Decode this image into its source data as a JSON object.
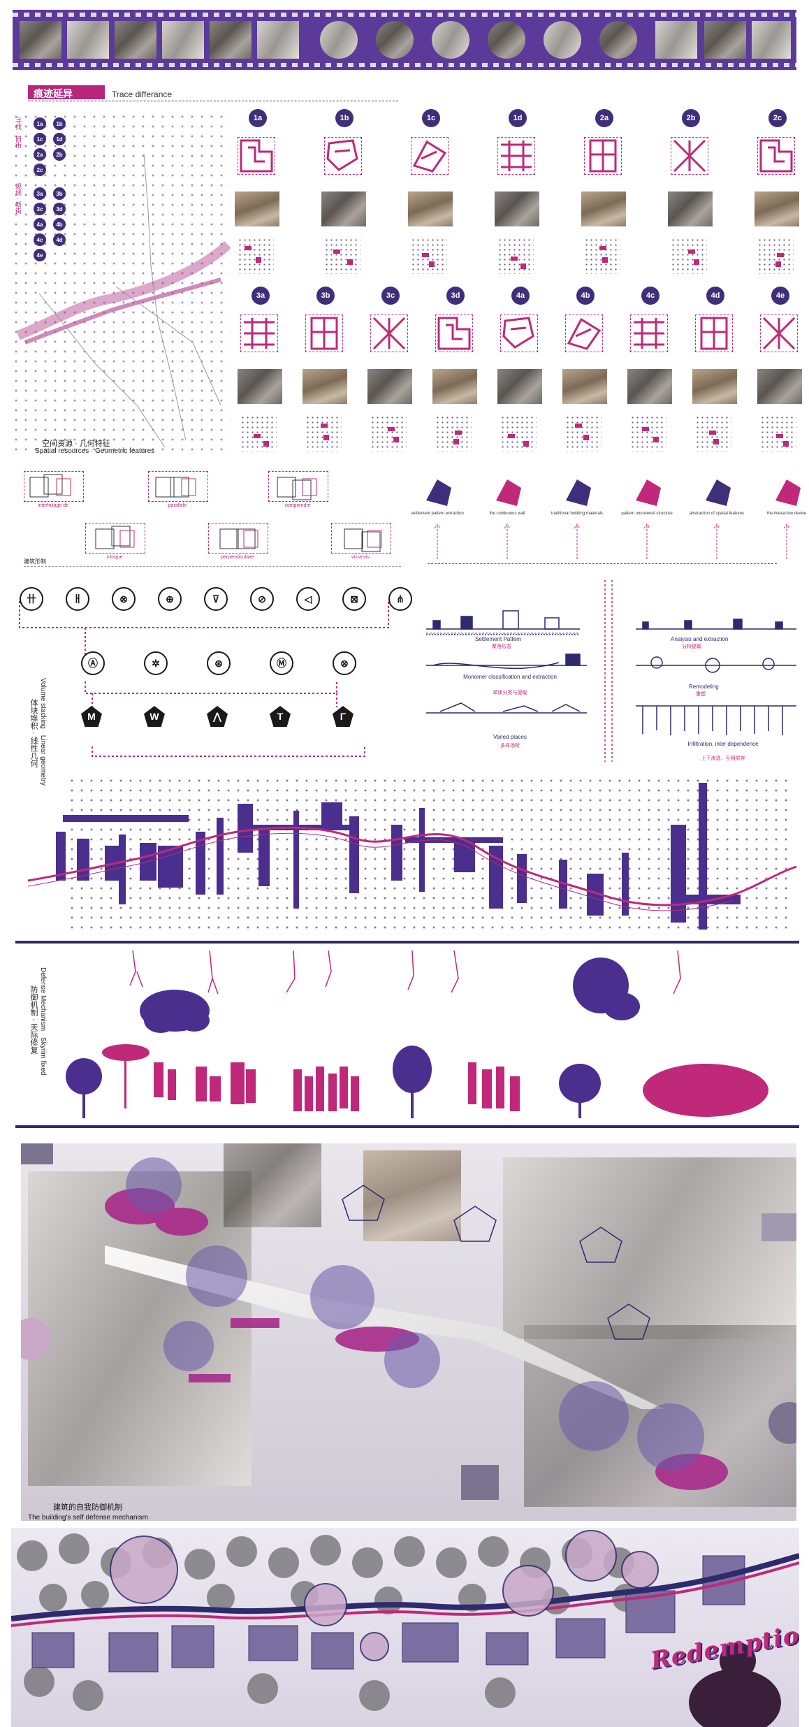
{
  "header": {
    "title_cn": "痕迹延异",
    "title_en": "Trace differance"
  },
  "legend": {
    "group1_label": "寻找 · 旧街",
    "group2_label": "规线 · 新街",
    "group1_badges": [
      "1a",
      "1b",
      "1c",
      "1d",
      "2a",
      "2b",
      "2c"
    ],
    "group2_badges": [
      "3a",
      "3b",
      "3c",
      "3d",
      "4a",
      "4b",
      "4c",
      "4d",
      "4e"
    ]
  },
  "map": {
    "caption_cn": "空间资源 · 几何特征",
    "caption_en": "Spatial resources · Geometric features"
  },
  "sites_row1": [
    "1a",
    "1b",
    "1c",
    "1d",
    "2a",
    "2b",
    "2c"
  ],
  "sites_row2": [
    "3a",
    "3b",
    "3c",
    "3d",
    "4a",
    "4b",
    "4c",
    "4d",
    "4e"
  ],
  "relations": {
    "items": [
      {
        "label": "interfoliage de"
      },
      {
        "label": "parallele"
      },
      {
        "label": "comprendre"
      },
      {
        "label": "intrique"
      },
      {
        "label": "perpendiculaire"
      },
      {
        "label": "vis-à-vis"
      }
    ],
    "section_label": "建筑形制"
  },
  "process": {
    "steps": [
      "settlement pattern extraction",
      "the continuous wall",
      "traditional building materials",
      "pattern uncovered structure",
      "abstraction of spatial features",
      "the interactive device"
    ]
  },
  "glyphs": {
    "row1": [
      "卄",
      "ㅐ",
      "⊗",
      "⊕",
      "⊽",
      "⊘",
      "◁",
      "⊠",
      "⋔"
    ],
    "row2": [
      "Ⓐ",
      "✲",
      "⊛",
      "Ⓜ",
      "⊗"
    ],
    "row3": [
      "M",
      "W",
      "⋀",
      "T",
      "Γ"
    ]
  },
  "analysis": {
    "settlement": {
      "en": "Settlement Pattern",
      "cn": "聚落形态"
    },
    "monomer": {
      "en": "Monomer classification and extraction",
      "cn": "单体分类与提取"
    },
    "varied": {
      "en": "Varied places",
      "cn": "多样场所"
    },
    "extraction": {
      "en": "Analysis and extraction",
      "cn": "分析提取"
    },
    "remodeling": {
      "en": "Remodeling",
      "cn": "重塑"
    },
    "infiltration": {
      "en": "Infiltration, inter dependence",
      "cn": "上下渗透，互相依存"
    }
  },
  "volume": {
    "label_en": "Volume stacking · Linear geometry",
    "label_cn": "体块堆积 · 线性几何"
  },
  "defense": {
    "label_en": "Defense Mechanism · Skyrim fixed",
    "label_cn": "防御机制 · 天际修复"
  },
  "collage": {
    "caption_cn": "建筑的自我防御机制",
    "caption_en": "The building's self defense mechanism"
  },
  "footer": {
    "redemption": "Redemption"
  },
  "colors": {
    "purple": "#3f2f7a",
    "magenta": "#c0287a",
    "navy": "#2d2a6e"
  }
}
